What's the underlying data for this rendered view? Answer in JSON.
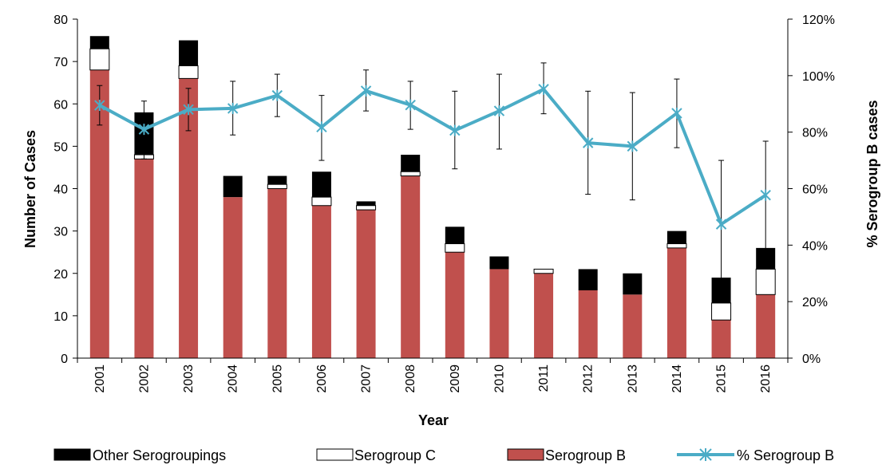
{
  "chart_data": {
    "type": "bar",
    "categories": [
      "2001",
      "2002",
      "2003",
      "2004",
      "2005",
      "2006",
      "2007",
      "2008",
      "2009",
      "2010",
      "2011",
      "2012",
      "2013",
      "2014",
      "2015",
      "2016"
    ],
    "series": [
      {
        "name": "Serogroup B",
        "color": "#c0504d",
        "values": [
          68,
          47,
          66,
          38,
          40,
          36,
          35,
          43,
          25,
          21,
          20,
          16,
          15,
          26,
          9,
          15
        ]
      },
      {
        "name": "Serogroup C",
        "color": "#ffffff",
        "values": [
          5,
          1,
          3,
          0,
          1,
          2,
          1,
          1,
          2,
          0,
          1,
          0,
          0,
          1,
          4,
          6
        ]
      },
      {
        "name": "Other Serogroupings",
        "color": "#000000",
        "values": [
          3,
          10,
          6,
          5,
          2,
          6,
          1,
          4,
          4,
          3,
          0,
          5,
          5,
          3,
          6,
          5
        ]
      }
    ],
    "line_series": {
      "name": "% Serogroup B",
      "color": "#4bacc6",
      "axis": "right",
      "values": [
        89.5,
        81.0,
        88.0,
        88.4,
        93.0,
        81.8,
        94.6,
        89.6,
        80.6,
        87.5,
        95.2,
        76.2,
        75.0,
        86.7,
        47.4,
        57.7
      ],
      "error_low": [
        82.5,
        70.5,
        80.5,
        79.0,
        85.5,
        70.0,
        87.5,
        81.0,
        67.0,
        74.0,
        86.5,
        58.0,
        56.0,
        74.5,
        20.5,
        37.5
      ],
      "error_high": [
        96.5,
        91.0,
        95.5,
        98.0,
        100.5,
        93.0,
        102.0,
        98.0,
        94.5,
        100.5,
        104.5,
        94.5,
        94.0,
        98.8,
        70.0,
        76.8
      ]
    },
    "xlabel": "Year",
    "ylabel": "Number of Cases",
    "y2label": "% Serogroup B cases",
    "ylim": [
      0,
      80
    ],
    "yticks": [
      "0",
      "10",
      "20",
      "30",
      "40",
      "50",
      "60",
      "70",
      "80"
    ],
    "y2lim": [
      0,
      120
    ],
    "y2ticks": [
      "0%",
      "20%",
      "40%",
      "60%",
      "80%",
      "100%",
      "120%"
    ],
    "grid": false,
    "legend_position": "bottom",
    "legend": [
      {
        "label": "Other Serogroupings",
        "kind": "box",
        "color": "#000000"
      },
      {
        "label": "Serogroup C",
        "kind": "box",
        "color": "#ffffff"
      },
      {
        "label": "Serogroup B",
        "kind": "box",
        "color": "#c0504d"
      },
      {
        "label": "% Serogroup B",
        "kind": "line",
        "color": "#4bacc6"
      }
    ]
  }
}
